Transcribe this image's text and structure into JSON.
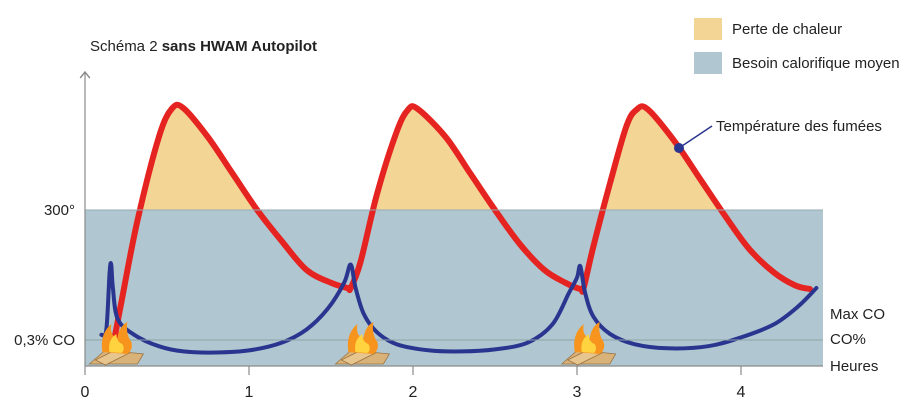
{
  "title": {
    "prefix": "Schéma 2",
    "bold": "sans HWAM Autopilot"
  },
  "legend": [
    {
      "label": "Perte de chaleur",
      "color": "#f3d596"
    },
    {
      "label": "Besoin calorifique moyen",
      "color": "#b0c7d1"
    }
  ],
  "colors": {
    "flue": "#e52421",
    "co": "#2a3590",
    "axis": "#8a8a8a",
    "heat_loss": "#f3d596",
    "heat_need": "#b0c7d1"
  },
  "annotations": {
    "flue_temperature": "Température des fumées",
    "max_co": "Max CO",
    "co_percent": "CO%"
  },
  "chart_data": {
    "type": "line",
    "title": "Schéma 2 sans HWAM Autopilot",
    "xlabel": "Heures",
    "ylabel": "",
    "x_ticks": [
      "0",
      "1",
      "2",
      "3",
      "4"
    ],
    "y_tick_labels": [
      {
        "value": 300,
        "label": "300°"
      },
      {
        "value": 50,
        "label": "0,3% CO"
      }
    ],
    "xlim": [
      0,
      4.5
    ],
    "ylim": [
      0,
      540
    ],
    "reference_levels": {
      "average_heat_demand": 300,
      "max_co": 50
    },
    "fire_icon_times": [
      0.1,
      1.6,
      2.98
    ],
    "series": [
      {
        "name": "Température des fumées",
        "points": [
          [
            0.16,
            20
          ],
          [
            0.22,
            120
          ],
          [
            0.32,
            280
          ],
          [
            0.45,
            440
          ],
          [
            0.53,
            495
          ],
          [
            0.6,
            496
          ],
          [
            0.75,
            440
          ],
          [
            0.9,
            370
          ],
          [
            1.05,
            300
          ],
          [
            1.2,
            240
          ],
          [
            1.35,
            185
          ],
          [
            1.5,
            160
          ],
          [
            1.6,
            150
          ],
          [
            1.62,
            150
          ],
          [
            1.68,
            200
          ],
          [
            1.78,
            330
          ],
          [
            1.9,
            450
          ],
          [
            1.97,
            493
          ],
          [
            2.03,
            494
          ],
          [
            2.2,
            440
          ],
          [
            2.35,
            370
          ],
          [
            2.5,
            300
          ],
          [
            2.65,
            235
          ],
          [
            2.8,
            185
          ],
          [
            2.93,
            160
          ],
          [
            3.02,
            148
          ],
          [
            3.04,
            150
          ],
          [
            3.1,
            230
          ],
          [
            3.2,
            350
          ],
          [
            3.3,
            460
          ],
          [
            3.36,
            492
          ],
          [
            3.43,
            494
          ],
          [
            3.6,
            430
          ],
          [
            3.75,
            360
          ],
          [
            3.9,
            290
          ],
          [
            4.05,
            225
          ],
          [
            4.2,
            180
          ],
          [
            4.33,
            155
          ],
          [
            4.42,
            148
          ]
        ]
      },
      {
        "name": "CO%",
        "points": [
          [
            0.1,
            60
          ],
          [
            0.13,
            70
          ],
          [
            0.15,
            180
          ],
          [
            0.16,
            195
          ],
          [
            0.17,
            150
          ],
          [
            0.2,
            90
          ],
          [
            0.3,
            60
          ],
          [
            0.45,
            38
          ],
          [
            0.6,
            28
          ],
          [
            0.8,
            26
          ],
          [
            1.0,
            30
          ],
          [
            1.2,
            45
          ],
          [
            1.35,
            70
          ],
          [
            1.48,
            110
          ],
          [
            1.58,
            160
          ],
          [
            1.62,
            195
          ],
          [
            1.65,
            150
          ],
          [
            1.7,
            100
          ],
          [
            1.78,
            65
          ],
          [
            1.9,
            42
          ],
          [
            2.1,
            30
          ],
          [
            2.3,
            28
          ],
          [
            2.5,
            32
          ],
          [
            2.7,
            45
          ],
          [
            2.85,
            80
          ],
          [
            2.95,
            140
          ],
          [
            3.0,
            170
          ],
          [
            3.02,
            192
          ],
          [
            3.05,
            140
          ],
          [
            3.1,
            95
          ],
          [
            3.2,
            62
          ],
          [
            3.35,
            42
          ],
          [
            3.55,
            34
          ],
          [
            3.8,
            38
          ],
          [
            4.0,
            55
          ],
          [
            4.2,
            80
          ],
          [
            4.35,
            115
          ],
          [
            4.46,
            150
          ]
        ]
      }
    ],
    "grid": false,
    "legend_position": "top-right"
  }
}
